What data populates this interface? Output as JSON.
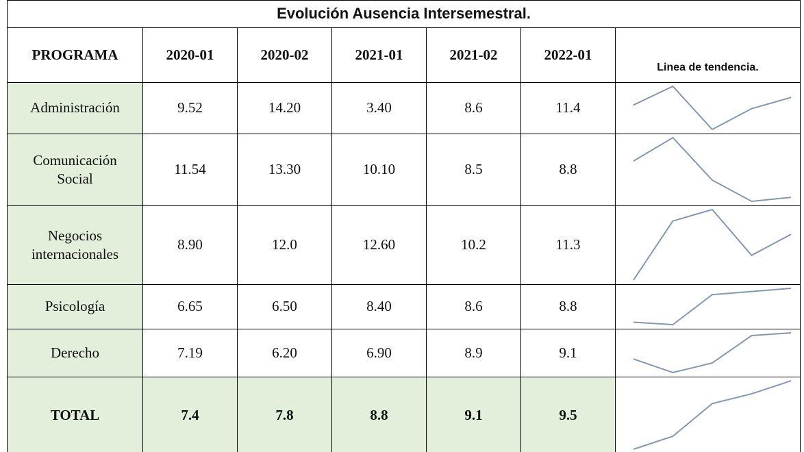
{
  "title": "Evolución Ausencia Intersemestral.",
  "table": {
    "header": [
      "PROGRAMA",
      "2020-01",
      "2020-02",
      "2021-01",
      "2021-02",
      "2022-01",
      "Linea de tendencia."
    ],
    "rows": [
      [
        "Administración",
        "9.52",
        "14.20",
        "3.40",
        "8.6",
        "11.4"
      ],
      [
        "Comunicación Social",
        "11.54",
        "13.30",
        "10.10",
        "8.5",
        "8.8"
      ],
      [
        "Negocios internacionales",
        "8.90",
        "12.0",
        "12.60",
        "10.2",
        "11.3"
      ],
      [
        "Psicología",
        "6.65",
        "6.50",
        "8.40",
        "8.6",
        "8.8"
      ],
      [
        "Derecho",
        "7.19",
        "6.20",
        "6.90",
        "8.9",
        "9.1"
      ],
      [
        "TOTAL",
        "7.4",
        "7.8",
        "8.8",
        "9.1",
        "9.5"
      ]
    ]
  }
}
